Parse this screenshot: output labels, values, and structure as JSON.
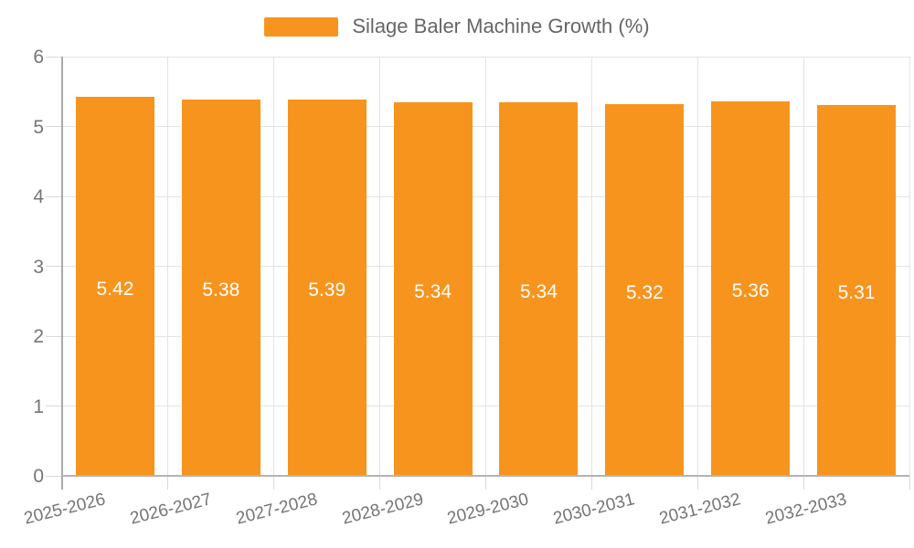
{
  "chart_data": {
    "type": "bar",
    "title": "Silage Baler Machine Growth (%)",
    "categories": [
      "2025-2026",
      "2026-2027",
      "2027-2028",
      "2028-2029",
      "2029-2030",
      "2030-2031",
      "2031-2032",
      "2032-2033"
    ],
    "values": [
      5.42,
      5.38,
      5.39,
      5.34,
      5.34,
      5.32,
      5.36,
      5.31
    ],
    "value_labels": [
      "5.42",
      "5.38",
      "5.39",
      "5.34",
      "5.34",
      "5.32",
      "5.36",
      "5.31"
    ],
    "xlabel": "",
    "ylabel": "",
    "ylim": [
      0,
      6
    ],
    "yticks": [
      0,
      1,
      2,
      3,
      4,
      5,
      6
    ],
    "grid": "on",
    "legend_position": "top-center"
  },
  "colors": {
    "bar": "#F7941E",
    "grid": "#E3E3E3",
    "y_axis": "#A8A8A8",
    "x_axis": "#B3B3B3",
    "tick": "#D9D9D9",
    "axis_text": "#757575",
    "legend_text": "#666666",
    "value_text": "#FFFFFF",
    "background": "#FFFFFF"
  }
}
